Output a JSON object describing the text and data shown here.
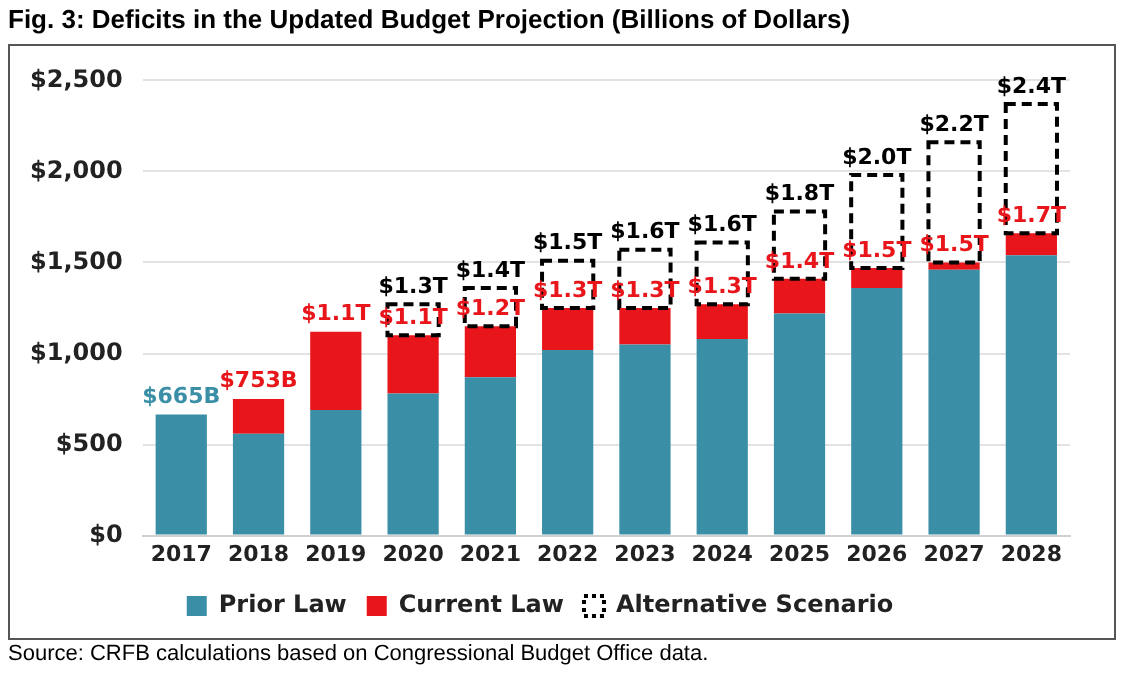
{
  "chart_data": {
    "type": "bar",
    "title": "Fig. 3: Deficits in the Updated Budget Projection (Billions of Dollars)",
    "categories": [
      "2017",
      "2018",
      "2019",
      "2020",
      "2021",
      "2022",
      "2023",
      "2024",
      "2025",
      "2026",
      "2027",
      "2028"
    ],
    "stacked": true,
    "series": [
      {
        "name": "Prior Law",
        "color": "#3a8fa6",
        "values": [
          665,
          560,
          690,
          780,
          870,
          1020,
          1050,
          1080,
          1220,
          1360,
          1460,
          1540
        ]
      },
      {
        "name": "Current Law",
        "color": "#e8161b",
        "values": [
          null,
          190,
          430,
          320,
          280,
          230,
          200,
          190,
          190,
          110,
          40,
          120
        ]
      },
      {
        "name": "Alternative Scenario",
        "color": "#000000",
        "line_style": "dashed",
        "values": [
          null,
          null,
          null,
          170,
          210,
          260,
          320,
          340,
          370,
          510,
          660,
          710
        ]
      }
    ],
    "ylim": [
      0,
      2500
    ],
    "yticks": [
      {
        "value": 0,
        "label": "$0"
      },
      {
        "value": 500,
        "label": "$500"
      },
      {
        "value": 1000,
        "label": "$1,000"
      },
      {
        "value": 1500,
        "label": "$1,500"
      },
      {
        "value": 2000,
        "label": "$2,000"
      },
      {
        "value": 2500,
        "label": "$2,500"
      }
    ],
    "grid": "y",
    "legend": "bottom",
    "annotations": [
      {
        "text": "$665B",
        "x": "2017",
        "y": 665
      },
      {
        "text": "$753B",
        "x": "2018",
        "y": 753
      },
      {
        "text": "$1.1T",
        "x": "2019",
        "y": 1120
      },
      {
        "text": "$1.1T",
        "x": "2020",
        "y": 1100
      },
      {
        "text": "$1.2T",
        "x": "2021",
        "y": 1150
      },
      {
        "text": "$1.3T",
        "x": "2022",
        "y": 1250
      },
      {
        "text": "$1.3T",
        "x": "2023",
        "y": 1250
      },
      {
        "text": "$1.3T",
        "x": "2024",
        "y": 1270
      },
      {
        "text": "$1.4T",
        "x": "2025",
        "y": 1410
      },
      {
        "text": "$1.5T",
        "x": "2026",
        "y": 1470
      },
      {
        "text": "$1.5T",
        "x": "2027",
        "y": 1500
      },
      {
        "text": "$1.7T",
        "x": "2028",
        "y": 1660
      },
      {
        "text": "$1.3T",
        "x": "2020",
        "y": 1270
      },
      {
        "text": "$1.4T",
        "x": "2021",
        "y": 1360
      },
      {
        "text": "$1.5T",
        "x": "2022",
        "y": 1510
      },
      {
        "text": "$1.6T",
        "x": "2023",
        "y": 1570
      },
      {
        "text": "$1.6T",
        "x": "2024",
        "y": 1610
      },
      {
        "text": "$1.8T",
        "x": "2025",
        "y": 1780
      },
      {
        "text": "$2.0T",
        "x": "2026",
        "y": 1980
      },
      {
        "text": "$2.2T",
        "x": "2027",
        "y": 2160
      },
      {
        "text": "$2.4T",
        "x": "2028",
        "y": 2370
      },
      "Source: CRFB calculations based on Congressional Budget Office data."
    ]
  }
}
